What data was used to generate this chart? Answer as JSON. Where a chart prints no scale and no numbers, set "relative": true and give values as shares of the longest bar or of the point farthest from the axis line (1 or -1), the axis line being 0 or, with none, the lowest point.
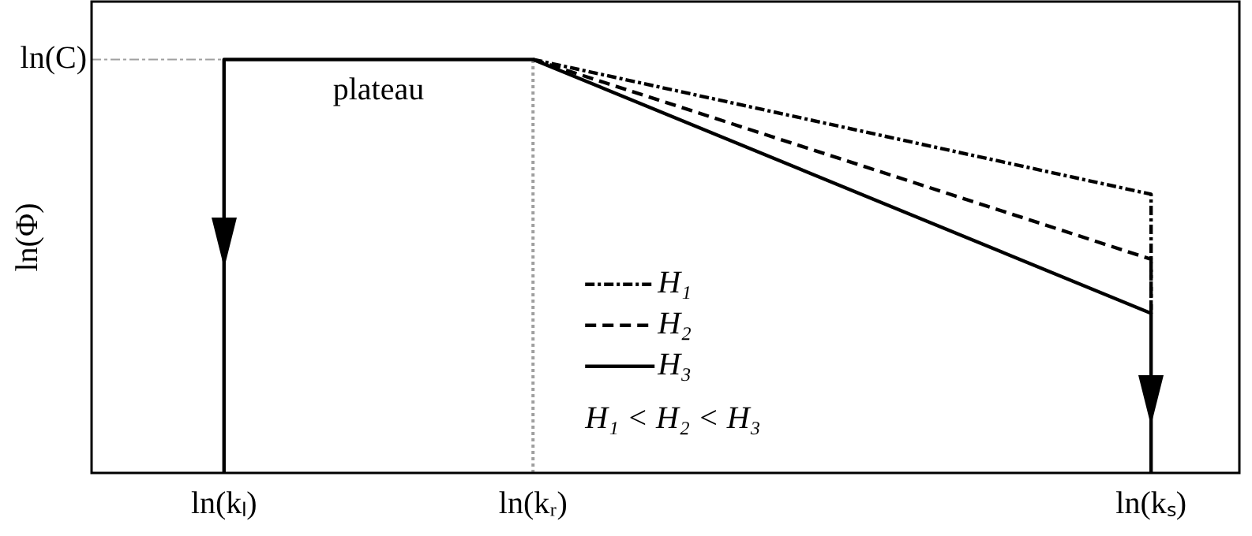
{
  "chart_data": {
    "type": "line",
    "relative": true,
    "ylabel": "ln(Φ)",
    "categories": [
      null,
      null,
      null,
      "ln(kₗ)",
      null,
      null,
      null,
      null,
      null,
      null,
      "ln(kᵣ)",
      null,
      null,
      null,
      null,
      null,
      null,
      null,
      null,
      null,
      null,
      null,
      null,
      null,
      "ln(kₛ)",
      null,
      null
    ],
    "series": [
      {
        "name": "H₁",
        "color": "#000000",
        "line_style": "dashdot",
        "x": [
          "ln(kᵣ)",
          "ln(kₛ)",
          "ln(kₛ)"
        ],
        "values": [
          1,
          0.674,
          0.386
        ]
      },
      {
        "name": "H₂",
        "color": "#000000",
        "line_style": "dashed",
        "x": [
          "ln(kᵣ)",
          "ln(kₛ)",
          "ln(kₛ)"
        ],
        "values": [
          1,
          0.517,
          0.386
        ]
      },
      {
        "name": "H₃",
        "color": "#000000",
        "line_style": "solid",
        "x": [
          "ln(kₗ)",
          "ln(kₗ)",
          "ln(kᵣ)",
          "ln(kₛ)",
          "ln(kₛ)"
        ],
        "values": [
          0,
          1,
          1,
          0.386,
          0
        ]
      }
    ],
    "ref_lines": [
      {
        "axis": "x",
        "value": "ln(kᵣ)",
        "color": "#a0a0a0",
        "line_style": "dotted"
      },
      {
        "axis": "y",
        "value": 1,
        "label": "ln(C)",
        "color": "#a0a0a0",
        "line_style": "dashdot"
      }
    ],
    "annotations": [
      "plateau",
      "H₁ < H₂ < H₃"
    ],
    "legend": "bottom",
    "grid": false,
    "marker": "none"
  }
}
